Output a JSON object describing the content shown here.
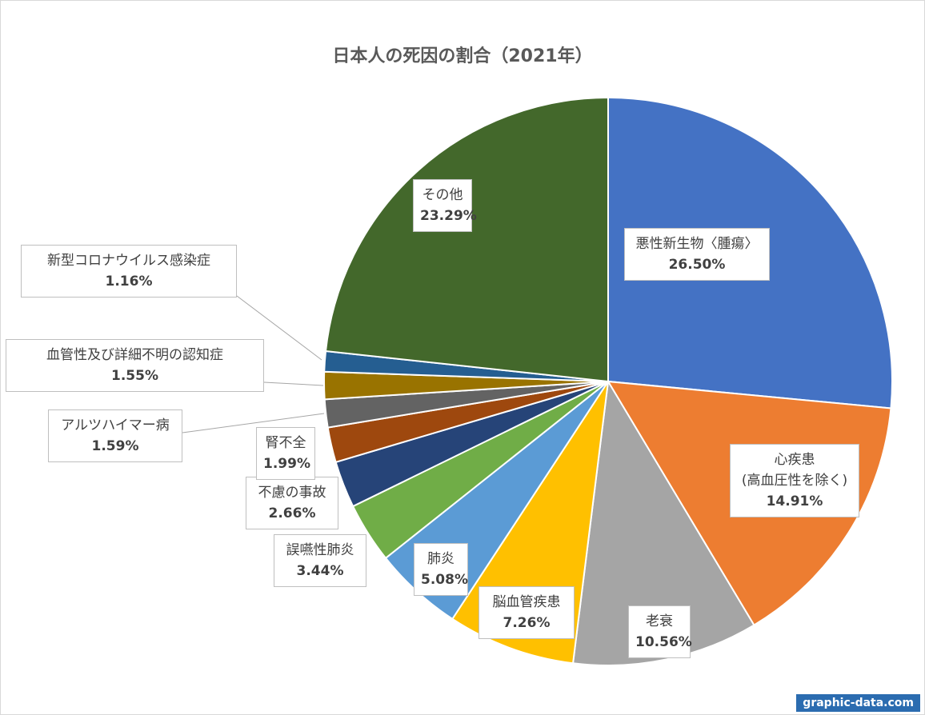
{
  "chart_data": {
    "type": "pie",
    "title": "日本人の死因の割合（2021年）",
    "start_angle_deg": 0,
    "direction": "clockwise",
    "slices": [
      {
        "name": "悪性新生物〈腫瘍〉",
        "value": 26.5,
        "label": "26.50%",
        "color": "#4472C4"
      },
      {
        "name": "心疾患\n(高血圧性を除く)",
        "value": 14.91,
        "label": "14.91%",
        "color": "#ED7D31"
      },
      {
        "name": "老衰",
        "value": 10.56,
        "label": "10.56%",
        "color": "#A5A5A5"
      },
      {
        "name": "脳血管疾患",
        "value": 7.26,
        "label": "7.26%",
        "color": "#FFC000"
      },
      {
        "name": "肺炎",
        "value": 5.08,
        "label": "5.08%",
        "color": "#5B9BD5"
      },
      {
        "name": "誤嚥性肺炎",
        "value": 3.44,
        "label": "3.44%",
        "color": "#70AD47"
      },
      {
        "name": "不慮の事故",
        "value": 2.66,
        "label": "2.66%",
        "color": "#264478"
      },
      {
        "name": "腎不全",
        "value": 1.99,
        "label": "1.99%",
        "color": "#9E480E"
      },
      {
        "name": "アルツハイマー病",
        "value": 1.59,
        "label": "1.59%",
        "color": "#636363"
      },
      {
        "name": "血管性及び詳細不明の認知症",
        "value": 1.55,
        "label": "1.55%",
        "color": "#997300"
      },
      {
        "name": "新型コロナウイルス感染症",
        "value": 1.16,
        "label": "1.16%",
        "color": "#255E91"
      },
      {
        "name": "その他",
        "value": 23.29,
        "label": "23.29%",
        "color": "#43682B"
      }
    ]
  },
  "watermark": "graphic-data.com"
}
